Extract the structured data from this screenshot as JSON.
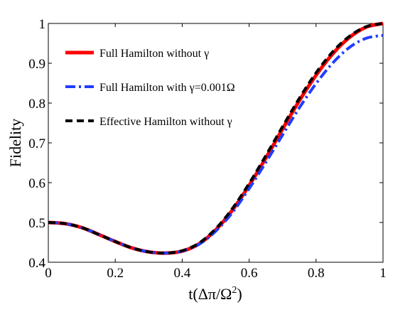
{
  "chart_data": {
    "type": "line",
    "title": "",
    "xlabel": "t(Δπ/Ω",
    "xlabel_sup": "2",
    "xlabel_close": ")",
    "ylabel": "Fidelity",
    "xlim": [
      0,
      1
    ],
    "ylim": [
      0.4,
      1
    ],
    "xticks": [
      0,
      0.2,
      0.4,
      0.6,
      0.8,
      1
    ],
    "xtick_labels": [
      "0",
      "0.2",
      "0.4",
      "0.6",
      "0.8",
      "1"
    ],
    "yticks": [
      0.4,
      0.5,
      0.6,
      0.7,
      0.8,
      0.9,
      1
    ],
    "ytick_labels": [
      "0.4",
      "0.5",
      "0.6",
      "0.7",
      "0.8",
      "0.9",
      "1"
    ],
    "grid": false,
    "legend_position": "top-left",
    "x": [
      0,
      0.05,
      0.1,
      0.15,
      0.2,
      0.25,
      0.3,
      0.35,
      0.4,
      0.45,
      0.5,
      0.55,
      0.6,
      0.65,
      0.7,
      0.75,
      0.8,
      0.85,
      0.9,
      0.95,
      1.0
    ],
    "series": [
      {
        "name": "Full Hamilton without γ",
        "color": "#ff0000",
        "style": "solid",
        "values": [
          0.5,
          0.497,
          0.487,
          0.47,
          0.452,
          0.436,
          0.426,
          0.423,
          0.428,
          0.446,
          0.481,
          0.531,
          0.593,
          0.662,
          0.735,
          0.806,
          0.87,
          0.924,
          0.965,
          0.991,
          1.0
        ]
      },
      {
        "name": "Full Hamilton with γ=0.001Ω",
        "color": "#1f3dff",
        "style": "dashdot",
        "values": [
          0.5,
          0.497,
          0.487,
          0.47,
          0.452,
          0.436,
          0.426,
          0.423,
          0.428,
          0.445,
          0.478,
          0.525,
          0.585,
          0.651,
          0.72,
          0.788,
          0.849,
          0.901,
          0.94,
          0.963,
          0.97
        ]
      },
      {
        "name": "Effective Hamilton without γ",
        "color": "#000000",
        "style": "dashed",
        "values": [
          0.5,
          0.497,
          0.487,
          0.47,
          0.452,
          0.436,
          0.426,
          0.423,
          0.429,
          0.448,
          0.484,
          0.535,
          0.598,
          0.668,
          0.741,
          0.812,
          0.876,
          0.929,
          0.968,
          0.992,
          1.0
        ]
      }
    ]
  }
}
